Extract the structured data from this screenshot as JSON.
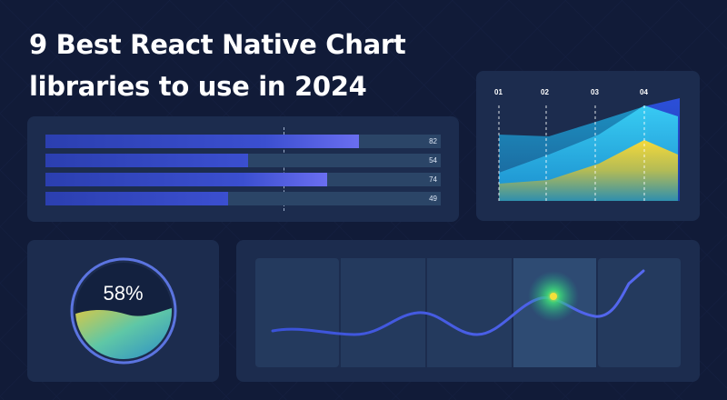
{
  "title": {
    "line1": "9 Best React Native Chart",
    "line2": "libraries to use in 2024"
  },
  "bars": [
    {
      "label": "82",
      "value": 82
    },
    {
      "label": "54",
      "value": 54
    },
    {
      "label": "74",
      "value": 74
    },
    {
      "label": "49",
      "value": 49
    }
  ],
  "area_chart": {
    "ticks": [
      "01",
      "02",
      "03",
      "04"
    ]
  },
  "gauge": {
    "label": "58%",
    "value": 58
  },
  "colors": {
    "background": "#111b38",
    "panel": "#1c2c4e",
    "accent_blue": "#3b5bdb",
    "accent_yellow": "#f2d230",
    "accent_cyan": "#2ec8f0"
  }
}
